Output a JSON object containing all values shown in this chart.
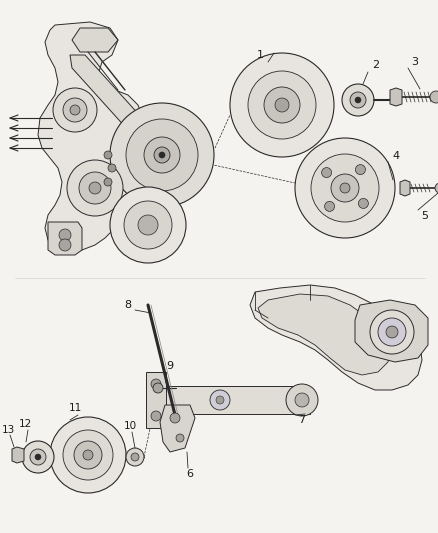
{
  "bg": "#f5f3ef",
  "lc": "#2a2a2a",
  "tc": "#1a1a1a",
  "fig_w": 4.38,
  "fig_h": 5.33,
  "dpi": 100
}
